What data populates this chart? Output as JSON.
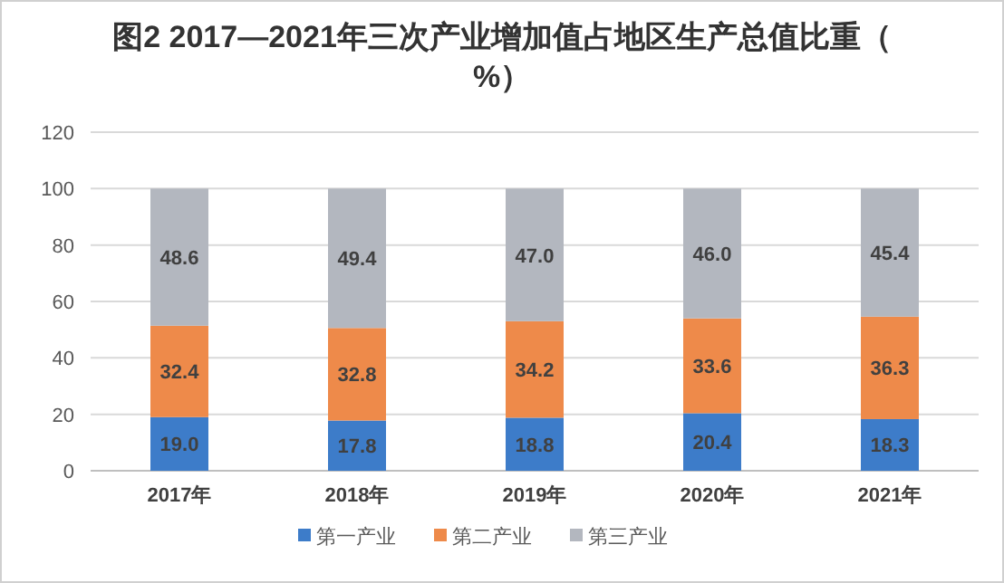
{
  "chart_data": {
    "type": "bar",
    "title": "图2 2017—2021年三次产业增加值占地区生产总值比重（%）",
    "categories": [
      "2017年",
      "2018年",
      "2019年",
      "2020年",
      "2021年"
    ],
    "series": [
      {
        "name": "第一产业",
        "color": "#3d7cc9",
        "values": [
          19.0,
          17.8,
          18.8,
          20.4,
          18.3
        ],
        "value_labels": [
          "19.0",
          "17.8",
          "18.8",
          "20.4",
          "18.3"
        ]
      },
      {
        "name": "第二产业",
        "color": "#ee8a4a",
        "values": [
          32.4,
          32.8,
          34.2,
          33.6,
          36.3
        ],
        "value_labels": [
          "32.4",
          "32.8",
          "34.2",
          "33.6",
          "36.3"
        ]
      },
      {
        "name": "第三产业",
        "color": "#b3b7bf",
        "values": [
          48.6,
          49.4,
          47.0,
          46.0,
          45.4
        ],
        "value_labels": [
          "48.6",
          "49.4",
          "47.0",
          "46.0",
          "45.4"
        ]
      }
    ],
    "stacked": true,
    "ylim": [
      0,
      120
    ],
    "yticks": [
      0,
      20,
      40,
      60,
      80,
      100,
      120
    ],
    "grid": "y",
    "legend": "bottom"
  }
}
